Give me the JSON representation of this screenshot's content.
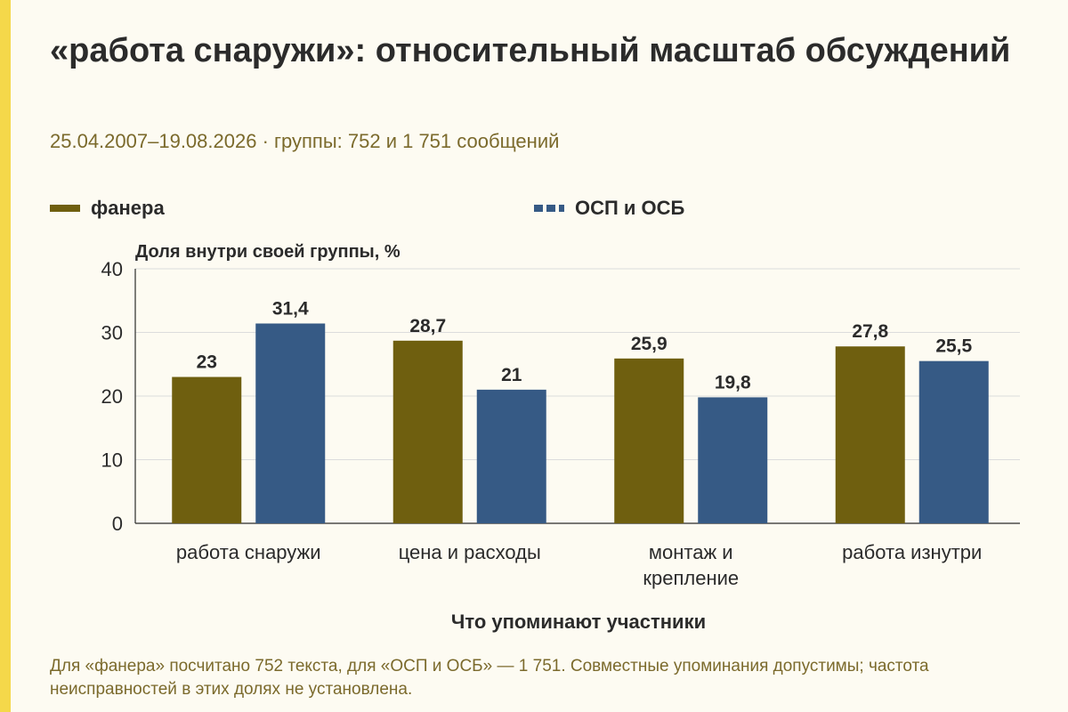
{
  "title": "«работа снаружи»: относительный масштаб обсуждений",
  "subtitle": "25.04.2007–19.08.2026 · группы: 752 и 1 751 сообщений",
  "note": "Для «фанера» посчитано 752 текста, для «ОСП и ОСБ» — 1 751. Совместные упоминания допустимы; частота неисправностей в этих долях не установлена.",
  "colors": {
    "plywood": "#6f5f0f",
    "osb": "#365a85",
    "grid": "#dcdcdc",
    "axis": "#2b2b2b"
  },
  "chart_data": {
    "type": "bar",
    "title": "«работа снаружи»: относительный масштаб обсуждений",
    "xlabel": "Что упоминают участники",
    "ylabel": "Доля внутри своей группы, %",
    "ylim": [
      0,
      40
    ],
    "yticks": [
      0,
      10,
      20,
      30,
      40
    ],
    "grid": true,
    "legend_position": "top",
    "categories": [
      "работа снаружи",
      "цена и расходы",
      "монтаж и крепление",
      "работа изнутри"
    ],
    "series": [
      {
        "name": "фанера",
        "values": [
          23,
          28.7,
          25.9,
          27.8
        ],
        "labels": [
          "23",
          "28,7",
          "25,9",
          "27,8"
        ]
      },
      {
        "name": "ОСП и ОСБ",
        "values": [
          31.4,
          21,
          19.8,
          25.5
        ],
        "labels": [
          "31,4",
          "21",
          "19,8",
          "25,5"
        ]
      }
    ]
  }
}
